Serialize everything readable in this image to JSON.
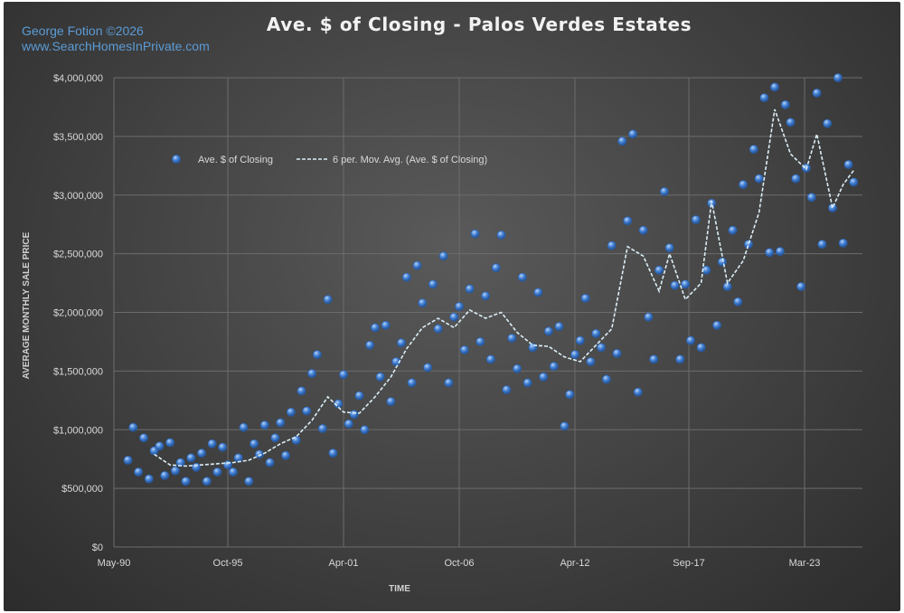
{
  "credit": {
    "author": "George Fotion ©2026",
    "website": "www.SearchHomesInPrivate.com"
  },
  "colors": {
    "marker": "#4a86d8",
    "marker_highlight": "#b7d4f5",
    "moving_average": "#dbeef7",
    "gridline": "#6c6c6c",
    "text": "#d9d9d9"
  },
  "chart_data": {
    "type": "scatter",
    "title": "Ave. $ of Closing - Palos Verdes Estates",
    "xlabel": "TIME",
    "ylabel": "AVERAGE MONTHLY SALE PRICE",
    "xlim": [
      "1990-05",
      "2025-12"
    ],
    "ylim": [
      0,
      4000000
    ],
    "y_ticks": [
      0,
      500000,
      1000000,
      1500000,
      2000000,
      2500000,
      3000000,
      3500000,
      4000000
    ],
    "y_tick_labels": [
      "$0",
      "$500,000",
      "$1,000,000",
      "$1,500,000",
      "$2,000,000",
      "$2,500,000",
      "$3,000,000",
      "$3,500,000",
      "$4,000,000"
    ],
    "x_ticks": [
      "1990-05",
      "1995-10",
      "2001-04",
      "2006-10",
      "2012-04",
      "2017-09",
      "2023-03"
    ],
    "x_tick_labels": [
      "May-90",
      "Oct-95",
      "Apr-01",
      "Oct-06",
      "Apr-12",
      "Sep-17",
      "Mar-23"
    ],
    "grid": true,
    "legend_position": "top-left",
    "trendline": {
      "type": "moving_average",
      "period": 6
    },
    "series": [
      {
        "name": "Ave. $ of Closing",
        "style": "markers",
        "points": [
          [
            "1991-01",
            740000
          ],
          [
            "1991-04",
            1020000
          ],
          [
            "1991-07",
            640000
          ],
          [
            "1991-10",
            930000
          ],
          [
            "1992-01",
            580000
          ],
          [
            "1992-04",
            820000
          ],
          [
            "1992-07",
            860000
          ],
          [
            "1992-10",
            610000
          ],
          [
            "1993-01",
            890000
          ],
          [
            "1993-04",
            650000
          ],
          [
            "1993-07",
            720000
          ],
          [
            "1993-10",
            560000
          ],
          [
            "1994-01",
            760000
          ],
          [
            "1994-04",
            680000
          ],
          [
            "1994-07",
            800000
          ],
          [
            "1994-10",
            560000
          ],
          [
            "1995-01",
            880000
          ],
          [
            "1995-04",
            640000
          ],
          [
            "1995-07",
            850000
          ],
          [
            "1995-10",
            700000
          ],
          [
            "1996-01",
            640000
          ],
          [
            "1996-04",
            760000
          ],
          [
            "1996-07",
            1020000
          ],
          [
            "1996-10",
            560000
          ],
          [
            "1997-01",
            880000
          ],
          [
            "1997-04",
            790000
          ],
          [
            "1997-07",
            1040000
          ],
          [
            "1997-10",
            720000
          ],
          [
            "1998-01",
            930000
          ],
          [
            "1998-04",
            1060000
          ],
          [
            "1998-07",
            780000
          ],
          [
            "1998-10",
            1150000
          ],
          [
            "1999-01",
            910000
          ],
          [
            "1999-04",
            1330000
          ],
          [
            "1999-07",
            1160000
          ],
          [
            "1999-10",
            1480000
          ],
          [
            "2000-01",
            1640000
          ],
          [
            "2000-04",
            1010000
          ],
          [
            "2000-07",
            2110000
          ],
          [
            "2000-10",
            800000
          ],
          [
            "2001-01",
            1220000
          ],
          [
            "2001-04",
            1470000
          ],
          [
            "2001-07",
            1050000
          ],
          [
            "2001-10",
            1130000
          ],
          [
            "2002-01",
            1290000
          ],
          [
            "2002-04",
            1000000
          ],
          [
            "2002-07",
            1720000
          ],
          [
            "2002-10",
            1870000
          ],
          [
            "2003-01",
            1450000
          ],
          [
            "2003-04",
            1890000
          ],
          [
            "2003-07",
            1240000
          ],
          [
            "2003-10",
            1580000
          ],
          [
            "2004-01",
            1740000
          ],
          [
            "2004-04",
            2300000
          ],
          [
            "2004-07",
            1400000
          ],
          [
            "2004-10",
            2400000
          ],
          [
            "2005-01",
            2080000
          ],
          [
            "2005-04",
            1530000
          ],
          [
            "2005-07",
            2240000
          ],
          [
            "2005-10",
            1860000
          ],
          [
            "2006-01",
            2480000
          ],
          [
            "2006-04",
            1400000
          ],
          [
            "2006-07",
            1960000
          ],
          [
            "2006-10",
            2050000
          ],
          [
            "2007-01",
            1680000
          ],
          [
            "2007-04",
            2200000
          ],
          [
            "2007-07",
            2670000
          ],
          [
            "2007-10",
            1750000
          ],
          [
            "2008-01",
            2140000
          ],
          [
            "2008-04",
            1600000
          ],
          [
            "2008-07",
            2380000
          ],
          [
            "2008-10",
            2660000
          ],
          [
            "2009-01",
            1340000
          ],
          [
            "2009-04",
            1780000
          ],
          [
            "2009-07",
            1520000
          ],
          [
            "2009-10",
            2300000
          ],
          [
            "2010-01",
            1400000
          ],
          [
            "2010-04",
            1700000
          ],
          [
            "2010-07",
            2170000
          ],
          [
            "2010-10",
            1450000
          ],
          [
            "2011-01",
            1840000
          ],
          [
            "2011-04",
            1540000
          ],
          [
            "2011-07",
            1880000
          ],
          [
            "2011-10",
            1030000
          ],
          [
            "2012-01",
            1300000
          ],
          [
            "2012-04",
            1640000
          ],
          [
            "2012-07",
            1760000
          ],
          [
            "2012-10",
            2120000
          ],
          [
            "2013-01",
            1580000
          ],
          [
            "2013-04",
            1820000
          ],
          [
            "2013-07",
            1700000
          ],
          [
            "2013-10",
            1430000
          ],
          [
            "2014-01",
            2570000
          ],
          [
            "2014-04",
            1650000
          ],
          [
            "2014-07",
            3460000
          ],
          [
            "2014-10",
            2780000
          ],
          [
            "2015-01",
            3520000
          ],
          [
            "2015-04",
            1320000
          ],
          [
            "2015-07",
            2700000
          ],
          [
            "2015-10",
            1960000
          ],
          [
            "2016-01",
            1600000
          ],
          [
            "2016-04",
            2360000
          ],
          [
            "2016-07",
            3030000
          ],
          [
            "2016-10",
            2550000
          ],
          [
            "2017-01",
            2230000
          ],
          [
            "2017-04",
            1600000
          ],
          [
            "2017-07",
            2240000
          ],
          [
            "2017-10",
            1760000
          ],
          [
            "2018-01",
            2790000
          ],
          [
            "2018-04",
            1700000
          ],
          [
            "2018-07",
            2360000
          ],
          [
            "2018-10",
            2930000
          ],
          [
            "2019-01",
            1890000
          ],
          [
            "2019-04",
            2430000
          ],
          [
            "2019-07",
            2220000
          ],
          [
            "2019-10",
            2700000
          ],
          [
            "2020-01",
            2090000
          ],
          [
            "2020-04",
            3090000
          ],
          [
            "2020-07",
            2580000
          ],
          [
            "2020-10",
            3390000
          ],
          [
            "2021-01",
            3140000
          ],
          [
            "2021-04",
            3830000
          ],
          [
            "2021-07",
            2510000
          ],
          [
            "2021-10",
            3920000
          ],
          [
            "2022-01",
            2520000
          ],
          [
            "2022-04",
            3770000
          ],
          [
            "2022-07",
            3620000
          ],
          [
            "2022-10",
            3140000
          ],
          [
            "2023-01",
            2220000
          ],
          [
            "2023-04",
            3230000
          ],
          [
            "2023-07",
            2980000
          ],
          [
            "2023-10",
            3870000
          ],
          [
            "2024-01",
            2580000
          ],
          [
            "2024-04",
            3610000
          ],
          [
            "2024-07",
            2890000
          ],
          [
            "2024-10",
            4000000
          ],
          [
            "2025-01",
            2590000
          ],
          [
            "2025-04",
            3260000
          ],
          [
            "2025-07",
            3110000
          ]
        ]
      },
      {
        "name": "6 per. Mov. Avg. (Ave. $ of Closing)",
        "style": "dashed-line",
        "points": [
          [
            "1992-04",
            790000
          ],
          [
            "1993-01",
            700000
          ],
          [
            "1993-10",
            690000
          ],
          [
            "1994-07",
            700000
          ],
          [
            "1995-04",
            710000
          ],
          [
            "1996-01",
            720000
          ],
          [
            "1996-10",
            740000
          ],
          [
            "1997-07",
            800000
          ],
          [
            "1998-04",
            880000
          ],
          [
            "1999-01",
            940000
          ],
          [
            "1999-10",
            1080000
          ],
          [
            "2000-07",
            1280000
          ],
          [
            "2001-04",
            1150000
          ],
          [
            "2002-01",
            1140000
          ],
          [
            "2002-10",
            1280000
          ],
          [
            "2003-07",
            1450000
          ],
          [
            "2004-04",
            1690000
          ],
          [
            "2005-01",
            1870000
          ],
          [
            "2005-10",
            1950000
          ],
          [
            "2006-07",
            1870000
          ],
          [
            "2007-04",
            2020000
          ],
          [
            "2008-01",
            1950000
          ],
          [
            "2008-10",
            2000000
          ],
          [
            "2009-07",
            1830000
          ],
          [
            "2010-04",
            1720000
          ],
          [
            "2011-01",
            1710000
          ],
          [
            "2011-10",
            1620000
          ],
          [
            "2012-07",
            1580000
          ],
          [
            "2013-04",
            1720000
          ],
          [
            "2014-01",
            1860000
          ],
          [
            "2014-10",
            2560000
          ],
          [
            "2015-07",
            2480000
          ],
          [
            "2016-04",
            2180000
          ],
          [
            "2016-10",
            2500000
          ],
          [
            "2017-07",
            2110000
          ],
          [
            "2018-04",
            2250000
          ],
          [
            "2018-10",
            2950000
          ],
          [
            "2019-07",
            2250000
          ],
          [
            "2020-04",
            2440000
          ],
          [
            "2021-01",
            2850000
          ],
          [
            "2021-10",
            3730000
          ],
          [
            "2022-07",
            3350000
          ],
          [
            "2023-04",
            3220000
          ],
          [
            "2023-10",
            3520000
          ],
          [
            "2024-07",
            2890000
          ],
          [
            "2025-01",
            3090000
          ],
          [
            "2025-07",
            3210000
          ]
        ]
      }
    ]
  }
}
